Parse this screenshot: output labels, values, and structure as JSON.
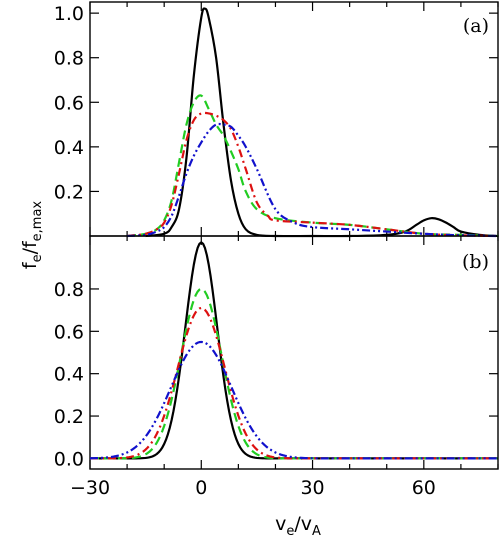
{
  "chart_data": [
    {
      "panel": "a",
      "type": "line",
      "panel_label": "(a)",
      "xlim": [
        -30,
        80
      ],
      "ylim": [
        0,
        1.05
      ],
      "yticks": [
        0.2,
        0.4,
        0.6,
        0.8,
        1.0
      ],
      "ytick_labels": [
        "0.2",
        "0.4",
        "0.6",
        "0.8",
        "1.0"
      ],
      "grid": false,
      "series": [
        {
          "color": "#000000",
          "dash": "solid",
          "x": [
            -15,
            -10,
            -8,
            -6,
            -4,
            -2,
            0,
            1,
            2,
            4,
            6,
            8,
            10,
            12,
            15,
            20,
            30,
            40,
            50,
            55,
            58,
            60,
            62,
            64,
            66,
            68,
            70,
            75,
            80
          ],
          "y": [
            0.0,
            0.01,
            0.04,
            0.12,
            0.35,
            0.72,
            0.98,
            1.02,
            0.98,
            0.8,
            0.5,
            0.25,
            0.1,
            0.03,
            0.005,
            0.0,
            0.0,
            0.0,
            0.005,
            0.02,
            0.05,
            0.07,
            0.08,
            0.075,
            0.06,
            0.04,
            0.02,
            0.005,
            0.0
          ]
        },
        {
          "color": "#22cc22",
          "dash": "dashed",
          "x": [
            -20,
            -15,
            -12,
            -10,
            -8,
            -6,
            -4,
            -2,
            0,
            2,
            4,
            6,
            8,
            10,
            12,
            15,
            20,
            30,
            40,
            50,
            60,
            70,
            80
          ],
          "y": [
            0.0,
            0.01,
            0.03,
            0.07,
            0.16,
            0.33,
            0.5,
            0.6,
            0.63,
            0.57,
            0.5,
            0.45,
            0.38,
            0.3,
            0.2,
            0.12,
            0.08,
            0.06,
            0.05,
            0.03,
            0.01,
            0.005,
            0.0
          ]
        },
        {
          "color": "#dd1111",
          "dash": "dashdot",
          "x": [
            -20,
            -15,
            -12,
            -10,
            -8,
            -6,
            -4,
            -2,
            0,
            2,
            4,
            6,
            8,
            10,
            12,
            15,
            18,
            20,
            30,
            40,
            50,
            60,
            70,
            80
          ],
          "y": [
            0.0,
            0.01,
            0.03,
            0.06,
            0.14,
            0.28,
            0.43,
            0.52,
            0.55,
            0.55,
            0.54,
            0.52,
            0.48,
            0.4,
            0.3,
            0.15,
            0.09,
            0.07,
            0.06,
            0.05,
            0.03,
            0.01,
            0.003,
            0.0
          ]
        },
        {
          "color": "#1111cc",
          "dash": "dashdotdot",
          "x": [
            -20,
            -15,
            -12,
            -10,
            -8,
            -6,
            -4,
            -2,
            0,
            2,
            4,
            6,
            8,
            10,
            12,
            15,
            20,
            25,
            30,
            40,
            50,
            60,
            70,
            80
          ],
          "y": [
            0.0,
            0.005,
            0.02,
            0.04,
            0.09,
            0.18,
            0.28,
            0.36,
            0.42,
            0.47,
            0.5,
            0.5,
            0.49,
            0.45,
            0.4,
            0.3,
            0.12,
            0.06,
            0.04,
            0.03,
            0.02,
            0.01,
            0.003,
            0.0
          ]
        }
      ]
    },
    {
      "panel": "b",
      "type": "line",
      "panel_label": "(b)",
      "xlim": [
        -30,
        80
      ],
      "ylim": [
        -0.05,
        1.05
      ],
      "yticks": [
        0.0,
        0.2,
        0.4,
        0.6,
        0.8
      ],
      "ytick_labels": [
        "0.0",
        "0.2",
        "0.4",
        "0.6",
        "0.8"
      ],
      "xticks": [
        -30,
        0,
        30,
        60
      ],
      "xtick_labels": [
        "−30",
        "0",
        "30",
        "60"
      ],
      "grid": false,
      "series": [
        {
          "color": "#000000",
          "dash": "solid",
          "gauss": {
            "amp": 1.02,
            "mu": 0,
            "sigma": 4.3
          }
        },
        {
          "color": "#22cc22",
          "dash": "dashed",
          "gauss": {
            "amp": 0.8,
            "mu": 0,
            "sigma": 5.5
          }
        },
        {
          "color": "#dd1111",
          "dash": "dashdot",
          "gauss": {
            "amp": 0.71,
            "mu": 0,
            "sigma": 6.3
          }
        },
        {
          "color": "#1111cc",
          "dash": "dashdotdot",
          "gauss": {
            "amp": 0.55,
            "mu": 0,
            "sigma": 8.2
          }
        }
      ]
    }
  ],
  "axes": {
    "ylabel_main": "f",
    "ylabel_sub": "e",
    "ylabel_sep": "/f",
    "ylabel_sub2": "e,max",
    "xlabel_main": "v",
    "xlabel_sub": "e",
    "xlabel_sep": "/v",
    "xlabel_sub2": "A"
  }
}
